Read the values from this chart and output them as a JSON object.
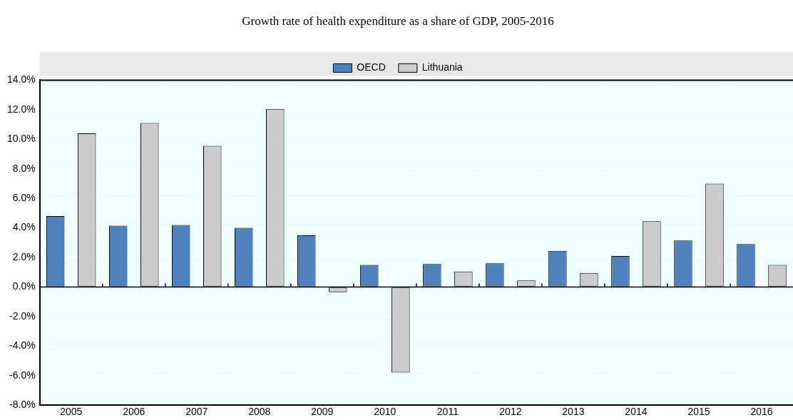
{
  "chart_data": {
    "type": "bar",
    "title": "Growth rate of health expenditure as a share of GDP, 2005-2016",
    "categories": [
      "2005",
      "2006",
      "2007",
      "2008",
      "2009",
      "2010",
      "2011",
      "2012",
      "2013",
      "2014",
      "2015",
      "2016"
    ],
    "series": [
      {
        "name": "OECD",
        "color": "#4f81bd",
        "values": [
          4.8,
          4.15,
          4.2,
          4.0,
          3.5,
          1.5,
          1.55,
          1.6,
          2.45,
          2.1,
          3.15,
          2.9
        ]
      },
      {
        "name": "Lithuania",
        "color": "#cccccc",
        "values": [
          10.4,
          11.1,
          9.55,
          12.05,
          -0.35,
          -5.8,
          1.05,
          0.45,
          0.95,
          4.45,
          7.0,
          1.5
        ]
      }
    ],
    "ylim": [
      -8,
      14
    ],
    "yticks": [
      {
        "value": -8,
        "label": "-8.0%"
      },
      {
        "value": -6,
        "label": "-6.0%"
      },
      {
        "value": -4,
        "label": "-4.0%"
      },
      {
        "value": -2,
        "label": "-2.0%"
      },
      {
        "value": 0,
        "label": "0.0%"
      },
      {
        "value": 2,
        "label": "2.0%"
      },
      {
        "value": 4,
        "label": "4.0%"
      },
      {
        "value": 6,
        "label": "6.0%"
      },
      {
        "value": 8,
        "label": "8.0%"
      },
      {
        "value": 10,
        "label": "10.0%"
      },
      {
        "value": 12,
        "label": "12.0%"
      },
      {
        "value": 14,
        "label": "14.0%"
      }
    ],
    "grid": true,
    "legend": "top"
  }
}
